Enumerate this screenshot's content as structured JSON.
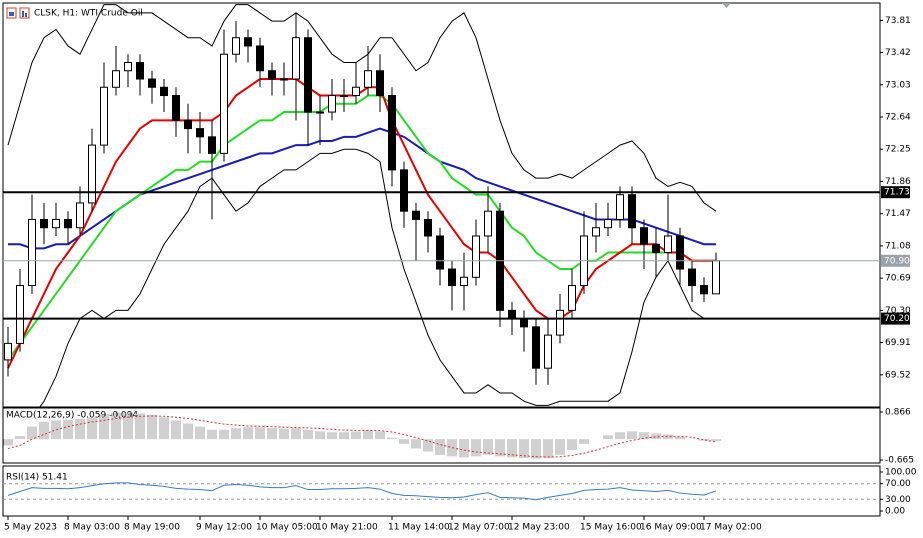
{
  "chart_data": [
    {
      "type": "candlestick",
      "title": "CLSK, H1:  WTI Crude Oil",
      "categories": [
        "5 May 2023",
        null,
        null,
        null,
        null,
        "8 May 03:00",
        null,
        null,
        null,
        null,
        "8 May 19:00",
        null,
        null,
        null,
        null,
        null,
        "9 May 12:00",
        null,
        null,
        null,
        null,
        "10 May 05:00",
        null,
        null,
        null,
        null,
        "10 May 21:00",
        null,
        null,
        null,
        null,
        null,
        "11 May 14:00",
        null,
        null,
        null,
        null,
        "12 May 07:00",
        null,
        null,
        null,
        null,
        "12 May 23:00",
        null,
        null,
        null,
        null,
        null,
        "15 May 16:00",
        null,
        null,
        null,
        null,
        "16 May 09:00",
        null,
        null,
        null,
        null,
        "17 May 02:00",
        null
      ],
      "open": [
        69.7,
        69.9,
        70.6,
        71.4,
        71.3,
        71.4,
        71.3,
        71.6,
        72.3,
        73.0,
        73.2,
        73.3,
        73.1,
        73.0,
        72.9,
        72.6,
        72.5,
        72.4,
        72.2,
        73.4,
        73.6,
        73.5,
        73.2,
        73.1,
        73.1,
        73.6,
        72.7,
        72.7,
        72.9,
        72.9,
        73.0,
        73.2,
        72.9,
        72.0,
        71.5,
        71.4,
        71.2,
        70.8,
        70.6,
        70.7,
        71.2,
        71.5,
        70.3,
        70.2,
        70.1,
        69.6,
        70.0,
        70.3,
        70.6,
        71.2,
        71.3,
        71.4,
        71.7,
        71.3,
        71.1,
        71.0,
        71.2,
        70.8,
        70.6,
        70.5
      ],
      "high": [
        70.1,
        70.8,
        71.7,
        71.6,
        71.6,
        71.5,
        71.8,
        72.5,
        73.3,
        73.5,
        73.4,
        73.4,
        73.2,
        73.1,
        73.0,
        72.8,
        72.7,
        72.6,
        73.7,
        73.8,
        73.7,
        73.6,
        73.3,
        73.3,
        73.9,
        73.7,
        72.9,
        73.1,
        73.1,
        73.3,
        73.5,
        73.4,
        73.0,
        72.1,
        71.6,
        71.5,
        71.3,
        70.9,
        71.0,
        71.4,
        71.8,
        71.6,
        70.4,
        70.3,
        70.2,
        70.2,
        70.5,
        70.8,
        71.5,
        71.6,
        71.6,
        71.8,
        71.8,
        71.4,
        71.3,
        71.7,
        71.3,
        70.9,
        70.7,
        71.0
      ],
      "low": [
        69.5,
        69.8,
        70.5,
        71.1,
        71.2,
        71.1,
        71.2,
        71.5,
        72.2,
        72.9,
        73.0,
        72.9,
        72.8,
        72.7,
        72.4,
        72.2,
        72.2,
        71.4,
        72.1,
        73.3,
        73.3,
        73.0,
        72.9,
        72.9,
        72.6,
        72.3,
        72.3,
        72.6,
        72.7,
        72.8,
        72.9,
        72.7,
        71.8,
        71.3,
        70.9,
        71.0,
        70.6,
        70.3,
        70.3,
        70.6,
        71.0,
        70.1,
        70.0,
        69.8,
        69.4,
        69.4,
        69.9,
        70.2,
        70.5,
        71.0,
        71.2,
        71.3,
        71.1,
        70.8,
        70.7,
        70.9,
        70.6,
        70.4,
        70.4,
        70.5
      ],
      "close": [
        69.9,
        70.6,
        71.4,
        71.3,
        71.4,
        71.3,
        71.6,
        72.3,
        73.0,
        73.2,
        73.3,
        73.1,
        73.0,
        72.9,
        72.6,
        72.5,
        72.4,
        72.2,
        73.4,
        73.6,
        73.5,
        73.2,
        73.1,
        73.1,
        73.6,
        72.7,
        72.7,
        72.9,
        72.9,
        73.0,
        73.2,
        72.9,
        72.0,
        71.5,
        71.4,
        71.2,
        70.8,
        70.6,
        70.7,
        71.2,
        71.5,
        70.3,
        70.2,
        70.1,
        69.6,
        70.0,
        70.3,
        70.6,
        71.2,
        71.3,
        71.4,
        71.7,
        71.3,
        71.1,
        71.0,
        71.2,
        70.8,
        70.6,
        70.5,
        70.9
      ],
      "lines": [
        {
          "color": "#000000",
          "values": [
            72.3,
            72.8,
            73.3,
            73.6,
            73.7,
            73.5,
            73.4,
            73.7,
            74.0,
            74.0,
            73.9,
            73.9,
            73.9,
            73.8,
            73.7,
            73.6,
            73.6,
            73.5,
            73.8,
            74.0,
            74.0,
            73.9,
            73.8,
            73.8,
            73.9,
            73.8,
            73.6,
            73.4,
            73.3,
            73.3,
            73.4,
            73.6,
            73.6,
            73.4,
            73.2,
            73.3,
            73.6,
            73.8,
            73.9,
            73.6,
            73.1,
            72.6,
            72.2,
            72.0,
            71.9,
            71.9,
            71.95,
            71.9,
            72.0,
            72.1,
            72.2,
            72.3,
            72.35,
            72.2,
            71.9,
            71.8,
            71.85,
            71.8,
            71.6,
            71.5
          ]
        },
        {
          "color": "#000000",
          "values": [
            69.1,
            69.0,
            69.0,
            69.2,
            69.5,
            69.9,
            70.2,
            70.3,
            70.2,
            70.3,
            70.3,
            70.5,
            70.8,
            71.1,
            71.3,
            71.5,
            71.8,
            71.9,
            71.7,
            71.5,
            71.6,
            71.8,
            71.9,
            72.0,
            72.0,
            72.1,
            72.2,
            72.2,
            72.25,
            72.25,
            72.2,
            72.1,
            71.3,
            70.8,
            70.4,
            70.0,
            69.7,
            69.5,
            69.3,
            69.3,
            69.4,
            69.3,
            69.3,
            69.2,
            69.15,
            69.15,
            69.2,
            69.2,
            69.2,
            69.2,
            69.2,
            69.3,
            69.8,
            70.4,
            70.7,
            70.9,
            70.6,
            70.3,
            70.2,
            70.2
          ]
        },
        {
          "color": "#1a1ab8",
          "values": [
            71.1,
            71.1,
            71.05,
            71.05,
            71.1,
            71.1,
            71.2,
            71.3,
            71.4,
            71.5,
            71.6,
            71.7,
            71.75,
            71.8,
            71.85,
            71.9,
            71.95,
            72.0,
            72.05,
            72.1,
            72.15,
            72.2,
            72.2,
            72.25,
            72.3,
            72.3,
            72.35,
            72.35,
            72.4,
            72.4,
            72.45,
            72.5,
            72.45,
            72.4,
            72.3,
            72.2,
            72.1,
            72.05,
            72.0,
            71.9,
            71.85,
            71.8,
            71.75,
            71.7,
            71.65,
            71.6,
            71.55,
            71.5,
            71.45,
            71.4,
            71.4,
            71.4,
            71.4,
            71.35,
            71.3,
            71.25,
            71.2,
            71.15,
            71.1,
            71.1
          ]
        },
        {
          "color": "#22dd22",
          "values": [
            69.7,
            69.9,
            70.1,
            70.3,
            70.5,
            70.7,
            70.9,
            71.1,
            71.3,
            71.5,
            71.6,
            71.7,
            71.8,
            71.9,
            72.0,
            72.0,
            72.1,
            72.1,
            72.3,
            72.4,
            72.5,
            72.6,
            72.6,
            72.7,
            72.7,
            72.7,
            72.7,
            72.8,
            72.8,
            72.8,
            72.9,
            72.9,
            72.8,
            72.6,
            72.4,
            72.2,
            72.1,
            71.9,
            71.8,
            71.7,
            71.7,
            71.5,
            71.3,
            71.2,
            71.0,
            70.9,
            70.8,
            70.8,
            70.9,
            70.9,
            71.0,
            71.0,
            71.0,
            71.0,
            71.0,
            71.0,
            71.0,
            70.9,
            70.9,
            70.9
          ]
        },
        {
          "color": "#e60000",
          "values": [
            69.6,
            69.9,
            70.2,
            70.5,
            70.8,
            71.0,
            71.2,
            71.5,
            71.8,
            72.1,
            72.3,
            72.5,
            72.6,
            72.6,
            72.6,
            72.6,
            72.6,
            72.6,
            72.7,
            72.9,
            73.0,
            73.1,
            73.1,
            73.1,
            73.1,
            73.0,
            72.9,
            72.9,
            72.9,
            72.9,
            73.0,
            73.0,
            72.6,
            72.3,
            72.0,
            71.7,
            71.5,
            71.3,
            71.1,
            71.0,
            71.0,
            70.9,
            70.7,
            70.5,
            70.3,
            70.2,
            70.2,
            70.3,
            70.6,
            70.8,
            70.9,
            71.0,
            71.1,
            71.1,
            71.1,
            71.0,
            71.0,
            70.9,
            70.9,
            70.9
          ]
        }
      ],
      "ylim": [
        69.13,
        74.02
      ],
      "yticks": [
        73.81,
        73.42,
        73.03,
        72.64,
        72.25,
        71.86,
        71.47,
        71.08,
        70.69,
        {
          "value": 70.3,
          "label": "70.30"
        },
        69.91,
        69.52
      ],
      "levels": [
        71.73,
        {
          "value": 70.2,
          "label": "70.20"
        }
      ],
      "price": {
        "value": 70.9,
        "label": "70.90"
      }
    },
    {
      "type": "macd",
      "title": "MACD(12,26,9) -0.059 -0.094",
      "color": "#a0a0a0",
      "signal_color": "#e03030",
      "values": [
        -0.2,
        0.1,
        0.4,
        0.55,
        0.6,
        0.62,
        0.65,
        0.7,
        0.8,
        0.85,
        0.85,
        0.82,
        0.78,
        0.7,
        0.6,
        0.5,
        0.4,
        0.3,
        0.3,
        0.35,
        0.38,
        0.38,
        0.35,
        0.33,
        0.35,
        0.3,
        0.25,
        0.22,
        0.22,
        0.25,
        0.28,
        0.25,
        0.05,
        -0.15,
        -0.3,
        -0.4,
        -0.5,
        -0.55,
        -0.58,
        -0.55,
        -0.5,
        -0.55,
        -0.58,
        -0.6,
        -0.62,
        -0.6,
        -0.5,
        -0.35,
        -0.15,
        0.0,
        0.12,
        0.22,
        0.25,
        0.22,
        0.18,
        0.15,
        0.08,
        0.0,
        -0.05,
        -0.059
      ],
      "signal": [
        -0.3,
        -0.2,
        0.0,
        0.15,
        0.3,
        0.4,
        0.48,
        0.55,
        0.6,
        0.66,
        0.7,
        0.73,
        0.74,
        0.73,
        0.7,
        0.66,
        0.6,
        0.54,
        0.48,
        0.45,
        0.42,
        0.41,
        0.4,
        0.38,
        0.37,
        0.36,
        0.34,
        0.31,
        0.29,
        0.28,
        0.28,
        0.27,
        0.23,
        0.15,
        0.05,
        -0.06,
        -0.17,
        -0.27,
        -0.35,
        -0.41,
        -0.44,
        -0.47,
        -0.5,
        -0.53,
        -0.56,
        -0.57,
        -0.56,
        -0.52,
        -0.45,
        -0.35,
        -0.24,
        -0.13,
        -0.04,
        0.03,
        0.07,
        0.09,
        0.09,
        0.06,
        -0.02,
        -0.094
      ],
      "ylim": [
        -0.761,
        0.994
      ],
      "yticks": [
        0.866,
        -0.665
      ]
    },
    {
      "type": "line",
      "title": "RSI(14) 51.41",
      "color": "#3a7cc0",
      "values": [
        40,
        50,
        60,
        58,
        58,
        57,
        60,
        65,
        70,
        72,
        72,
        68,
        66,
        63,
        58,
        56,
        55,
        52,
        66,
        68,
        66,
        62,
        60,
        60,
        65,
        55,
        55,
        57,
        57,
        58,
        60,
        56,
        45,
        40,
        39,
        37,
        35,
        34,
        36,
        42,
        47,
        35,
        34,
        33,
        29,
        35,
        40,
        45,
        53,
        55,
        56,
        60,
        54,
        52,
        50,
        53,
        46,
        43,
        41,
        51.41
      ],
      "ylim": [
        -12.8,
        115.4
      ],
      "yticks": [
        {
          "value": 100,
          "label": "100.00"
        },
        {
          "value": 70,
          "label": "70.00"
        },
        {
          "value": 30,
          "label": "30.00"
        },
        {
          "value": 0,
          "label": "0.00"
        }
      ]
    }
  ]
}
